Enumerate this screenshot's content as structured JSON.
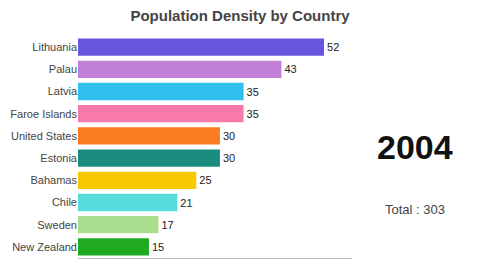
{
  "chart_data": {
    "type": "bar",
    "orientation": "horizontal",
    "title": "Population Density by Country",
    "categories": [
      "New Zealand",
      "Sweden",
      "Chile",
      "Bahamas",
      "Estonia",
      "United States",
      "Faroe Islands",
      "Latvia",
      "Palau",
      "Lithuania"
    ],
    "values": [
      15,
      17,
      21,
      25,
      30,
      30,
      35,
      35,
      43,
      52
    ],
    "colors": [
      "#1faa1f",
      "#aade8f",
      "#55dddd",
      "#f5c800",
      "#1a8c7e",
      "#f97c20",
      "#f87aaa",
      "#30c0ee",
      "#c080d8",
      "#6655dd"
    ],
    "xlim": [
      0,
      58
    ],
    "data_labels": true,
    "tick_labels": "y",
    "grid": false,
    "annotations": [
      "2004",
      "Total : 303"
    ]
  }
}
